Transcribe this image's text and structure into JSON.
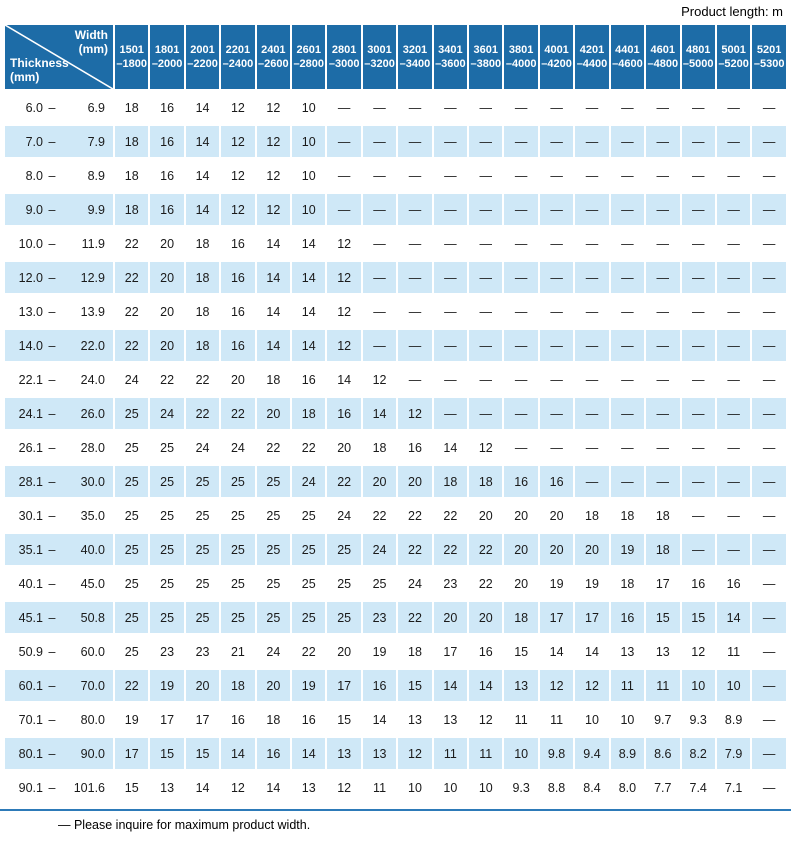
{
  "product_length_note": "Product length: m",
  "footer_note": "— Please inquire for maximum product width.",
  "colors": {
    "header_bg": "#1d6ca7",
    "alt_row_bg": "#cfe8f7",
    "rule": "#2d7ab8"
  },
  "table": {
    "corner": {
      "width_label": "Width",
      "thickness_label": "Thickness",
      "unit": "(mm)"
    },
    "range_separator": "–",
    "columns": [
      {
        "line1": "1501",
        "line2": "–1800"
      },
      {
        "line1": "1801",
        "line2": "–2000"
      },
      {
        "line1": "2001",
        "line2": "–2200"
      },
      {
        "line1": "2201",
        "line2": "–2400"
      },
      {
        "line1": "2401",
        "line2": "–2600"
      },
      {
        "line1": "2601",
        "line2": "–2800"
      },
      {
        "line1": "2801",
        "line2": "–3000"
      },
      {
        "line1": "3001",
        "line2": "–3200"
      },
      {
        "line1": "3201",
        "line2": "–3400"
      },
      {
        "line1": "3401",
        "line2": "–3600"
      },
      {
        "line1": "3601",
        "line2": "–3800"
      },
      {
        "line1": "3801",
        "line2": "–4000"
      },
      {
        "line1": "4001",
        "line2": "–4200"
      },
      {
        "line1": "4201",
        "line2": "–4400"
      },
      {
        "line1": "4401",
        "line2": "–4600"
      },
      {
        "line1": "4601",
        "line2": "–4800"
      },
      {
        "line1": "4801",
        "line2": "–5000"
      },
      {
        "line1": "5001",
        "line2": "–5200"
      },
      {
        "line1": "5201",
        "line2": "–5300"
      }
    ],
    "rows": [
      {
        "min": "6.0",
        "max": "6.9",
        "values": [
          "18",
          "16",
          "14",
          "12",
          "12",
          "10",
          "—",
          "—",
          "—",
          "—",
          "—",
          "—",
          "—",
          "—",
          "—",
          "—",
          "—",
          "—",
          "—"
        ]
      },
      {
        "min": "7.0",
        "max": "7.9",
        "values": [
          "18",
          "16",
          "14",
          "12",
          "12",
          "10",
          "—",
          "—",
          "—",
          "—",
          "—",
          "—",
          "—",
          "—",
          "—",
          "—",
          "—",
          "—",
          "—"
        ]
      },
      {
        "min": "8.0",
        "max": "8.9",
        "values": [
          "18",
          "16",
          "14",
          "12",
          "12",
          "10",
          "—",
          "—",
          "—",
          "—",
          "—",
          "—",
          "—",
          "—",
          "—",
          "—",
          "—",
          "—",
          "—"
        ]
      },
      {
        "min": "9.0",
        "max": "9.9",
        "values": [
          "18",
          "16",
          "14",
          "12",
          "12",
          "10",
          "—",
          "—",
          "—",
          "—",
          "—",
          "—",
          "—",
          "—",
          "—",
          "—",
          "—",
          "—",
          "—"
        ]
      },
      {
        "min": "10.0",
        "max": "11.9",
        "values": [
          "22",
          "20",
          "18",
          "16",
          "14",
          "14",
          "12",
          "—",
          "—",
          "—",
          "—",
          "—",
          "—",
          "—",
          "—",
          "—",
          "—",
          "—",
          "—"
        ]
      },
      {
        "min": "12.0",
        "max": "12.9",
        "values": [
          "22",
          "20",
          "18",
          "16",
          "14",
          "14",
          "12",
          "—",
          "—",
          "—",
          "—",
          "—",
          "—",
          "—",
          "—",
          "—",
          "—",
          "—",
          "—"
        ]
      },
      {
        "min": "13.0",
        "max": "13.9",
        "values": [
          "22",
          "20",
          "18",
          "16",
          "14",
          "14",
          "12",
          "—",
          "—",
          "—",
          "—",
          "—",
          "—",
          "—",
          "—",
          "—",
          "—",
          "—",
          "—"
        ]
      },
      {
        "min": "14.0",
        "max": "22.0",
        "values": [
          "22",
          "20",
          "18",
          "16",
          "14",
          "14",
          "12",
          "—",
          "—",
          "—",
          "—",
          "—",
          "—",
          "—",
          "—",
          "—",
          "—",
          "—",
          "—"
        ]
      },
      {
        "min": "22.1",
        "max": "24.0",
        "values": [
          "24",
          "22",
          "22",
          "20",
          "18",
          "16",
          "14",
          "12",
          "—",
          "—",
          "—",
          "—",
          "—",
          "—",
          "—",
          "—",
          "—",
          "—",
          "—"
        ]
      },
      {
        "min": "24.1",
        "max": "26.0",
        "values": [
          "25",
          "24",
          "22",
          "22",
          "20",
          "18",
          "16",
          "14",
          "12",
          "—",
          "—",
          "—",
          "—",
          "—",
          "—",
          "—",
          "—",
          "—",
          "—"
        ]
      },
      {
        "min": "26.1",
        "max": "28.0",
        "values": [
          "25",
          "25",
          "24",
          "24",
          "22",
          "22",
          "20",
          "18",
          "16",
          "14",
          "12",
          "—",
          "—",
          "—",
          "—",
          "—",
          "—",
          "—",
          "—"
        ]
      },
      {
        "min": "28.1",
        "max": "30.0",
        "values": [
          "25",
          "25",
          "25",
          "25",
          "25",
          "24",
          "22",
          "20",
          "20",
          "18",
          "18",
          "16",
          "16",
          "—",
          "—",
          "—",
          "—",
          "—",
          "—"
        ]
      },
      {
        "min": "30.1",
        "max": "35.0",
        "values": [
          "25",
          "25",
          "25",
          "25",
          "25",
          "25",
          "24",
          "22",
          "22",
          "22",
          "20",
          "20",
          "20",
          "18",
          "18",
          "18",
          "—",
          "—",
          "—"
        ]
      },
      {
        "min": "35.1",
        "max": "40.0",
        "values": [
          "25",
          "25",
          "25",
          "25",
          "25",
          "25",
          "25",
          "24",
          "22",
          "22",
          "22",
          "20",
          "20",
          "20",
          "19",
          "18",
          "—",
          "—",
          "—"
        ]
      },
      {
        "min": "40.1",
        "max": "45.0",
        "values": [
          "25",
          "25",
          "25",
          "25",
          "25",
          "25",
          "25",
          "25",
          "24",
          "23",
          "22",
          "20",
          "19",
          "19",
          "18",
          "17",
          "16",
          "16",
          "—"
        ]
      },
      {
        "min": "45.1",
        "max": "50.8",
        "values": [
          "25",
          "25",
          "25",
          "25",
          "25",
          "25",
          "25",
          "23",
          "22",
          "20",
          "20",
          "18",
          "17",
          "17",
          "16",
          "15",
          "15",
          "14",
          "—"
        ]
      },
      {
        "min": "50.9",
        "max": "60.0",
        "values": [
          "25",
          "23",
          "23",
          "21",
          "24",
          "22",
          "20",
          "19",
          "18",
          "17",
          "16",
          "15",
          "14",
          "14",
          "13",
          "13",
          "12",
          "11",
          "—"
        ]
      },
      {
        "min": "60.1",
        "max": "70.0",
        "values": [
          "22",
          "19",
          "20",
          "18",
          "20",
          "19",
          "17",
          "16",
          "15",
          "14",
          "14",
          "13",
          "12",
          "12",
          "11",
          "11",
          "10",
          "10",
          "—"
        ]
      },
      {
        "min": "70.1",
        "max": "80.0",
        "values": [
          "19",
          "17",
          "17",
          "16",
          "18",
          "16",
          "15",
          "14",
          "13",
          "13",
          "12",
          "11",
          "11",
          "10",
          "10",
          "9.7",
          "9.3",
          "8.9",
          "—"
        ]
      },
      {
        "min": "80.1",
        "max": "90.0",
        "values": [
          "17",
          "15",
          "15",
          "14",
          "16",
          "14",
          "13",
          "13",
          "12",
          "11",
          "11",
          "10",
          "9.8",
          "9.4",
          "8.9",
          "8.6",
          "8.2",
          "7.9",
          "—"
        ]
      },
      {
        "min": "90.1",
        "max": "101.6",
        "values": [
          "15",
          "13",
          "14",
          "12",
          "14",
          "13",
          "12",
          "11",
          "10",
          "10",
          "10",
          "9.3",
          "8.8",
          "8.4",
          "8.0",
          "7.7",
          "7.4",
          "7.1",
          "—"
        ]
      }
    ]
  }
}
